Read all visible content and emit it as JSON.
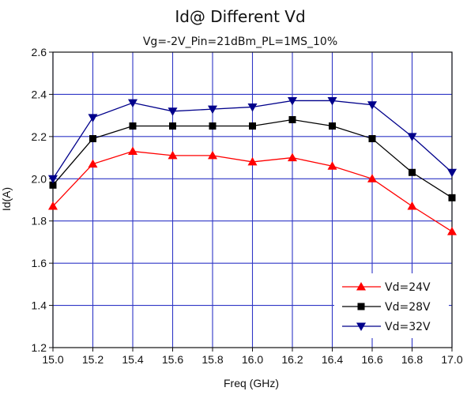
{
  "chart_data": {
    "type": "line",
    "title": "Id@ Different Vd",
    "subtitle": "Vg=-2V_Pin=21dBm_PL=1MS_10%",
    "xlabel": "Freq (GHz)",
    "ylabel": "Id(A)",
    "xlim": [
      15.0,
      17.0
    ],
    "ylim": [
      1.2,
      2.6
    ],
    "x_ticks": [
      "15.0",
      "15.2",
      "15.4",
      "15.6",
      "15.8",
      "16.0",
      "16.2",
      "16.4",
      "16.6",
      "16.8",
      "17.0"
    ],
    "y_ticks": [
      "1.2",
      "1.4",
      "1.6",
      "1.8",
      "2.0",
      "2.2",
      "2.4",
      "2.6"
    ],
    "grid": true,
    "legend_position": "bottom-right",
    "x": [
      15.0,
      15.2,
      15.4,
      15.6,
      15.8,
      16.0,
      16.2,
      16.4,
      16.6,
      16.8,
      17.0
    ],
    "series": [
      {
        "name": "Vd=24V",
        "color": "#ff0000",
        "marker": "triangle-up",
        "values": [
          1.87,
          2.07,
          2.13,
          2.11,
          2.11,
          2.08,
          2.1,
          2.06,
          2.0,
          1.87,
          1.75
        ]
      },
      {
        "name": "Vd=28V",
        "color": "#000000",
        "marker": "square",
        "values": [
          1.97,
          2.19,
          2.25,
          2.25,
          2.25,
          2.25,
          2.28,
          2.25,
          2.19,
          2.03,
          1.91
        ]
      },
      {
        "name": "Vd=32V",
        "color": "#00008b",
        "marker": "triangle-down",
        "values": [
          2.0,
          2.29,
          2.36,
          2.32,
          2.33,
          2.34,
          2.37,
          2.37,
          2.35,
          2.2,
          2.03
        ]
      }
    ]
  },
  "colors": {
    "grid": "#2f36c6",
    "axis": "#111111"
  }
}
